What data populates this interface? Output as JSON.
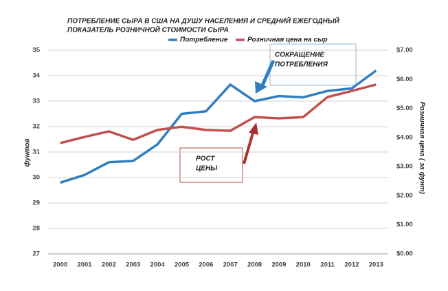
{
  "chart_data": {
    "type": "line",
    "title": [
      "ПОТРЕБЛЕНИЕ СЫРА В США НА ДУШУ НАСЕЛЕНИЯ И СРЕДНИЙ ЕЖЕГОДНЫЙ",
      "ПОКАЗАТЕЛЬ РОЗНИЧНОЙ СТОИМОСТИ СЫРА"
    ],
    "ylabel": "фунтов",
    "y2label": "Розничная цена ( за фунт)",
    "categories": [
      "2000",
      "2001",
      "2002",
      "2003",
      "2004",
      "2005",
      "2006",
      "2007",
      "2008",
      "2009",
      "2010",
      "2011",
      "2012",
      "2013"
    ],
    "series": [
      {
        "name": "Потребление",
        "color": "#2f7fc1",
        "values": [
          29.8,
          30.1,
          30.6,
          30.65,
          31.3,
          32.5,
          32.6,
          33.65,
          33.0,
          33.2,
          33.15,
          33.4,
          33.5,
          34.2
        ]
      },
      {
        "name": "Розничная цена на сыр",
        "color": "#c0504d",
        "axis": "y2",
        "values": [
          3.81,
          4.02,
          4.21,
          3.92,
          4.26,
          4.37,
          4.26,
          4.23,
          4.7,
          4.66,
          4.7,
          5.39,
          5.6,
          5.82
        ]
      }
    ],
    "ylim": [
      27,
      35
    ],
    "yticks": [
      27,
      28,
      29,
      30,
      31,
      32,
      33,
      34,
      35
    ],
    "y2lim": [
      0,
      7
    ],
    "y2ticks": [
      {
        "value": 0,
        "label": "$0.00"
      },
      {
        "value": 1,
        "label": "$1.00"
      },
      {
        "value": 2,
        "label": "$2.00"
      },
      {
        "value": 3,
        "label": "$3.00"
      },
      {
        "value": 4,
        "label": "$4.00"
      },
      {
        "value": 5,
        "label": "$5.00"
      },
      {
        "value": 6,
        "label": "$6.00"
      },
      {
        "value": 7,
        "label": "$7.00"
      }
    ],
    "grid": true,
    "annotations": [
      {
        "text": [
          "СОКРАЩЕНИЕ",
          "ПОТРЕБЛЕНИЯ"
        ]
      },
      {
        "text": [
          "РОСТ",
          "ЦЕНЫ"
        ]
      }
    ]
  }
}
